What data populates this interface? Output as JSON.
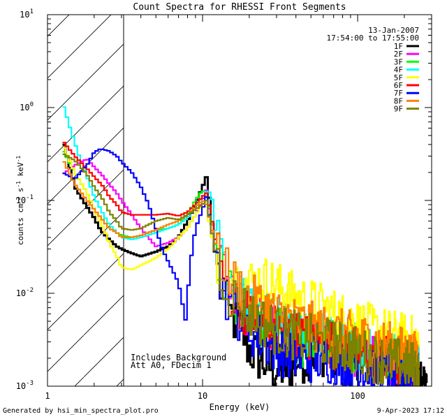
{
  "chart_data": {
    "type": "line",
    "title": "Count Spectra for RHESSI Front Segments",
    "xlabel": "Energy (keV)",
    "ylabel": "counts cm-2 s-1 keV-1",
    "xscale": "log",
    "yscale": "log",
    "xlim": [
      1,
      300
    ],
    "ylim": [
      0.001,
      10
    ],
    "x_ticks": [
      {
        "value": 1,
        "label": "1"
      },
      {
        "value": 10,
        "label": "10"
      },
      {
        "value": 100,
        "label": "100"
      }
    ],
    "y_ticks": [
      {
        "value": 0.001,
        "base": "10",
        "exp": "-3"
      },
      {
        "value": 0.01,
        "base": "10",
        "exp": "-2"
      },
      {
        "value": 0.1,
        "base": "10",
        "exp": "-1"
      },
      {
        "value": 1,
        "base": "10",
        "exp": "0"
      },
      {
        "value": 10,
        "base": "10",
        "exp": "1"
      }
    ],
    "excluded_region_keV": [
      1,
      3
    ],
    "date": "13-Jan-2007",
    "time_range": "17:54:00 to 17:55:00",
    "annotations": [
      "Includes Background",
      "Att A0, FDecim 1"
    ],
    "series": [
      {
        "name": "1F",
        "color": "#000000",
        "points": [
          [
            1.25,
            0.46
          ],
          [
            1.5,
            0.14
          ],
          [
            1.8,
            0.085
          ],
          [
            2.0,
            0.065
          ],
          [
            2.2,
            0.048
          ],
          [
            2.5,
            0.038
          ],
          [
            2.8,
            0.032
          ],
          [
            3.0,
            0.03
          ],
          [
            3.5,
            0.027
          ],
          [
            4.0,
            0.025
          ],
          [
            5.0,
            0.028
          ],
          [
            6.0,
            0.032
          ],
          [
            7.0,
            0.04
          ],
          [
            8.0,
            0.06
          ],
          [
            9.0,
            0.09
          ],
          [
            10.0,
            0.14
          ],
          [
            10.6,
            0.18
          ],
          [
            11.2,
            0.09
          ],
          [
            12.0,
            0.03
          ],
          [
            13.0,
            0.012
          ],
          [
            15.0,
            0.006
          ],
          [
            18.0,
            0.004
          ],
          [
            20.0,
            0.0025
          ],
          [
            25.0,
            0.0018
          ],
          [
            30.0,
            0.0015
          ],
          [
            40.0,
            0.0018
          ],
          [
            50.0,
            0.0022
          ],
          [
            70.0,
            0.0025
          ],
          [
            100.0,
            0.0022
          ],
          [
            150.0,
            0.0018
          ],
          [
            200.0,
            0.0015
          ],
          [
            280.0,
            0.0012
          ]
        ]
      },
      {
        "name": "2F",
        "color": "#ff00ff",
        "points": [
          [
            1.25,
            0.19
          ],
          [
            1.5,
            0.24
          ],
          [
            1.8,
            0.28
          ],
          [
            2.0,
            0.23
          ],
          [
            2.3,
            0.18
          ],
          [
            2.5,
            0.15
          ],
          [
            2.8,
            0.12
          ],
          [
            3.0,
            0.1
          ],
          [
            3.5,
            0.07
          ],
          [
            4.0,
            0.05
          ],
          [
            5.0,
            0.032
          ],
          [
            6.0,
            0.035
          ],
          [
            7.0,
            0.04
          ],
          [
            8.0,
            0.05
          ],
          [
            9.0,
            0.07
          ],
          [
            10.0,
            0.1
          ],
          [
            10.6,
            0.13
          ],
          [
            11.2,
            0.07
          ],
          [
            12.0,
            0.04
          ],
          [
            13.0,
            0.02
          ],
          [
            15.0,
            0.01
          ],
          [
            20.0,
            0.006
          ],
          [
            30.0,
            0.004
          ],
          [
            40.0,
            0.0035
          ],
          [
            60.0,
            0.003
          ],
          [
            90.0,
            0.0025
          ],
          [
            130.0,
            0.002
          ],
          [
            180.0,
            0.0018
          ],
          [
            250.0,
            0.0015
          ]
        ]
      },
      {
        "name": "3F",
        "color": "#00ff00",
        "points": [
          [
            1.25,
            0.36
          ],
          [
            1.5,
            0.2
          ],
          [
            1.8,
            0.12
          ],
          [
            2.0,
            0.08
          ],
          [
            2.3,
            0.06
          ],
          [
            2.5,
            0.05
          ],
          [
            2.8,
            0.045
          ],
          [
            3.0,
            0.042
          ],
          [
            3.5,
            0.04
          ],
          [
            4.0,
            0.042
          ],
          [
            5.0,
            0.048
          ],
          [
            6.0,
            0.05
          ],
          [
            7.0,
            0.055
          ],
          [
            8.0,
            0.07
          ],
          [
            9.0,
            0.1
          ],
          [
            10.0,
            0.13
          ],
          [
            10.6,
            0.11
          ],
          [
            11.2,
            0.08
          ],
          [
            12.0,
            0.035
          ],
          [
            13.0,
            0.02
          ],
          [
            15.0,
            0.01
          ],
          [
            20.0,
            0.006
          ],
          [
            30.0,
            0.004
          ],
          [
            40.0,
            0.003
          ],
          [
            60.0,
            0.003
          ],
          [
            90.0,
            0.0025
          ],
          [
            130.0,
            0.0022
          ],
          [
            180.0,
            0.0018
          ],
          [
            250.0,
            0.0015
          ]
        ]
      },
      {
        "name": "4F",
        "color": "#00ffff",
        "points": [
          [
            1.25,
            1.15
          ],
          [
            1.4,
            0.6
          ],
          [
            1.6,
            0.3
          ],
          [
            1.8,
            0.18
          ],
          [
            2.0,
            0.11
          ],
          [
            2.3,
            0.07
          ],
          [
            2.5,
            0.055
          ],
          [
            2.8,
            0.045
          ],
          [
            3.0,
            0.04
          ],
          [
            3.5,
            0.038
          ],
          [
            4.0,
            0.04
          ],
          [
            5.0,
            0.045
          ],
          [
            6.0,
            0.05
          ],
          [
            7.0,
            0.055
          ],
          [
            8.0,
            0.065
          ],
          [
            9.0,
            0.085
          ],
          [
            10.0,
            0.11
          ],
          [
            10.8,
            0.13
          ],
          [
            11.5,
            0.11
          ],
          [
            12.0,
            0.05
          ],
          [
            13.0,
            0.025
          ],
          [
            15.0,
            0.012
          ],
          [
            20.0,
            0.007
          ],
          [
            30.0,
            0.005
          ],
          [
            40.0,
            0.004
          ],
          [
            60.0,
            0.0035
          ],
          [
            90.0,
            0.003
          ],
          [
            130.0,
            0.0025
          ],
          [
            180.0,
            0.002
          ],
          [
            250.0,
            0.0017
          ]
        ]
      },
      {
        "name": "5F",
        "color": "#ffff00",
        "points": [
          [
            1.25,
            0.4
          ],
          [
            1.5,
            0.2
          ],
          [
            1.8,
            0.12
          ],
          [
            2.0,
            0.08
          ],
          [
            2.3,
            0.05
          ],
          [
            2.5,
            0.035
          ],
          [
            2.8,
            0.025
          ],
          [
            3.0,
            0.019
          ],
          [
            3.5,
            0.018
          ],
          [
            4.0,
            0.02
          ],
          [
            5.0,
            0.024
          ],
          [
            6.0,
            0.03
          ],
          [
            7.0,
            0.04
          ],
          [
            8.0,
            0.05
          ],
          [
            9.0,
            0.07
          ],
          [
            10.0,
            0.09
          ],
          [
            10.6,
            0.1
          ],
          [
            11.2,
            0.05
          ],
          [
            12.0,
            0.03
          ],
          [
            13.0,
            0.02
          ],
          [
            15.0,
            0.015
          ],
          [
            20.0,
            0.013
          ],
          [
            25.0,
            0.014
          ],
          [
            30.0,
            0.012
          ],
          [
            40.0,
            0.009
          ],
          [
            60.0,
            0.007
          ],
          [
            90.0,
            0.005
          ],
          [
            130.0,
            0.004
          ],
          [
            180.0,
            0.0035
          ],
          [
            250.0,
            0.003
          ]
        ]
      },
      {
        "name": "6F",
        "color": "#ff0000",
        "points": [
          [
            1.25,
            0.44
          ],
          [
            1.5,
            0.3
          ],
          [
            1.8,
            0.22
          ],
          [
            2.0,
            0.18
          ],
          [
            2.3,
            0.14
          ],
          [
            2.5,
            0.11
          ],
          [
            2.8,
            0.09
          ],
          [
            3.0,
            0.075
          ],
          [
            3.5,
            0.07
          ],
          [
            4.0,
            0.07
          ],
          [
            5.0,
            0.07
          ],
          [
            6.0,
            0.072
          ],
          [
            7.0,
            0.068
          ],
          [
            8.0,
            0.075
          ],
          [
            9.0,
            0.09
          ],
          [
            10.0,
            0.11
          ],
          [
            10.6,
            0.12
          ],
          [
            11.2,
            0.08
          ],
          [
            12.0,
            0.04
          ],
          [
            13.0,
            0.02
          ],
          [
            15.0,
            0.01
          ],
          [
            20.0,
            0.006
          ],
          [
            30.0,
            0.004
          ],
          [
            40.0,
            0.0035
          ],
          [
            60.0,
            0.003
          ],
          [
            90.0,
            0.0025
          ],
          [
            130.0,
            0.002
          ],
          [
            180.0,
            0.0018
          ],
          [
            250.0,
            0.0015
          ]
        ]
      },
      {
        "name": "7F",
        "color": "#0000ff",
        "points": [
          [
            1.25,
            0.2
          ],
          [
            1.5,
            0.17
          ],
          [
            1.8,
            0.24
          ],
          [
            2.0,
            0.33
          ],
          [
            2.2,
            0.36
          ],
          [
            2.5,
            0.34
          ],
          [
            2.8,
            0.3
          ],
          [
            3.0,
            0.26
          ],
          [
            3.5,
            0.2
          ],
          [
            4.0,
            0.14
          ],
          [
            4.5,
            0.09
          ],
          [
            5.0,
            0.05
          ],
          [
            5.5,
            0.03
          ],
          [
            6.0,
            0.022
          ],
          [
            7.0,
            0.013
          ],
          [
            7.8,
            0.005
          ],
          [
            8.3,
            0.02
          ],
          [
            9.0,
            0.05
          ],
          [
            10.0,
            0.08
          ],
          [
            10.6,
            0.11
          ],
          [
            11.2,
            0.06
          ],
          [
            12.0,
            0.03
          ],
          [
            13.0,
            0.015
          ],
          [
            15.0,
            0.008
          ],
          [
            20.0,
            0.004
          ],
          [
            30.0,
            0.0025
          ],
          [
            40.0,
            0.002
          ],
          [
            60.0,
            0.002
          ],
          [
            90.0,
            0.0018
          ],
          [
            130.0,
            0.0015
          ],
          [
            180.0,
            0.0013
          ],
          [
            250.0,
            0.0012
          ]
        ]
      },
      {
        "name": "8F",
        "color": "#ff8000",
        "points": [
          [
            1.25,
            0.28
          ],
          [
            1.5,
            0.15
          ],
          [
            1.8,
            0.1
          ],
          [
            2.0,
            0.08
          ],
          [
            2.3,
            0.06
          ],
          [
            2.5,
            0.05
          ],
          [
            2.8,
            0.045
          ],
          [
            3.0,
            0.04
          ],
          [
            3.5,
            0.04
          ],
          [
            4.0,
            0.042
          ],
          [
            5.0,
            0.048
          ],
          [
            6.0,
            0.055
          ],
          [
            7.0,
            0.06
          ],
          [
            8.0,
            0.07
          ],
          [
            9.0,
            0.085
          ],
          [
            10.0,
            0.1
          ],
          [
            10.6,
            0.09
          ],
          [
            11.2,
            0.06
          ],
          [
            12.0,
            0.035
          ],
          [
            13.0,
            0.025
          ],
          [
            15.0,
            0.015
          ],
          [
            20.0,
            0.009
          ],
          [
            30.0,
            0.006
          ],
          [
            40.0,
            0.005
          ],
          [
            60.0,
            0.004
          ],
          [
            90.0,
            0.0035
          ],
          [
            130.0,
            0.003
          ],
          [
            180.0,
            0.0025
          ],
          [
            250.0,
            0.002
          ]
        ]
      },
      {
        "name": "9F",
        "color": "#808000",
        "points": [
          [
            1.25,
            0.32
          ],
          [
            1.5,
            0.27
          ],
          [
            1.8,
            0.19
          ],
          [
            2.0,
            0.14
          ],
          [
            2.3,
            0.1
          ],
          [
            2.5,
            0.075
          ],
          [
            2.8,
            0.06
          ],
          [
            3.0,
            0.05
          ],
          [
            3.5,
            0.048
          ],
          [
            4.0,
            0.05
          ],
          [
            5.0,
            0.06
          ],
          [
            6.0,
            0.065
          ],
          [
            7.0,
            0.062
          ],
          [
            8.0,
            0.07
          ],
          [
            9.0,
            0.08
          ],
          [
            10.0,
            0.09
          ],
          [
            10.6,
            0.1
          ],
          [
            11.2,
            0.06
          ],
          [
            12.0,
            0.03
          ],
          [
            13.0,
            0.018
          ],
          [
            15.0,
            0.01
          ],
          [
            20.0,
            0.006
          ],
          [
            30.0,
            0.004
          ],
          [
            40.0,
            0.0035
          ],
          [
            60.0,
            0.003
          ],
          [
            90.0,
            0.0025
          ],
          [
            130.0,
            0.002
          ],
          [
            180.0,
            0.0018
          ],
          [
            250.0,
            0.0016
          ]
        ]
      }
    ]
  },
  "footer": {
    "generated_by": "Generated by hsi_min_spectra_plot.pro",
    "timestamp": "9-Apr-2023 17:12"
  }
}
